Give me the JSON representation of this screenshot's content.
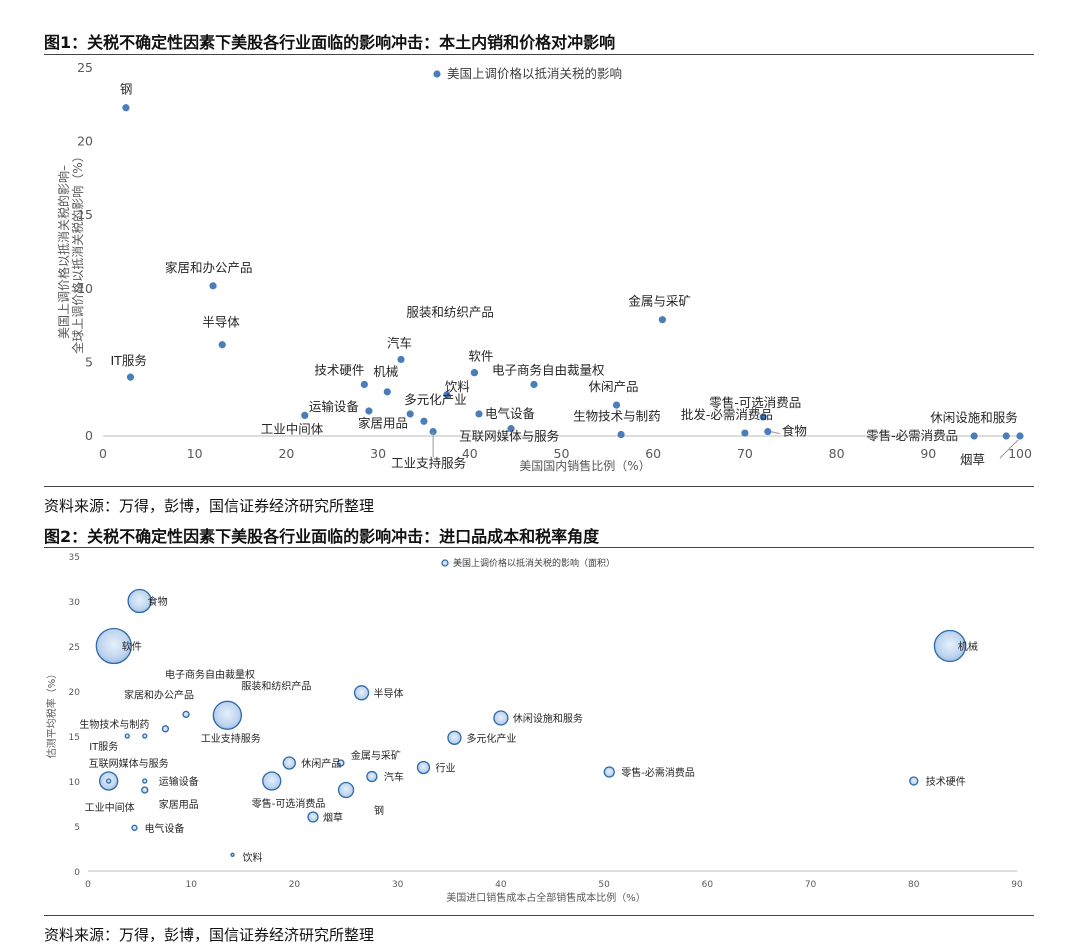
{
  "figures": [
    {
      "title": "图1：关税不确定性因素下美股各行业面临的影响冲击：本土内销和价格对冲影响",
      "source": "资料来源：万得，彭博，国信证券经济研究所整理",
      "chart_data": {
        "type": "scatter",
        "xlabel": "美国国内销售比例（%）",
        "ylabel": [
          "美国上调价格以抵消关税的影响–",
          "全球上调价格以抵消关税的影响（%）"
        ],
        "xlim": [
          0,
          100
        ],
        "ylim": [
          0,
          25
        ],
        "xticks": [
          "0",
          "10",
          "20",
          "30",
          "40",
          "50",
          "60",
          "70",
          "80",
          "90",
          "100"
        ],
        "yticks": [
          "0",
          "5",
          "10",
          "15",
          "20",
          "25"
        ],
        "legend": "美国上调价格以抵消关税的影响",
        "legend_position": "top-center",
        "color": "#4a7ebb",
        "points": [
          {
            "label": "钢",
            "x": 2.5,
            "y": 22.3
          },
          {
            "label": "家居和办公产品",
            "x": 12,
            "y": 10.2
          },
          {
            "label": "半导体",
            "x": 13,
            "y": 6.2
          },
          {
            "label": "IT服务",
            "x": 3,
            "y": 4.0
          },
          {
            "label": "服装和纺织产品",
            "x": 40.5,
            "y": 4.3
          },
          {
            "label": "汽车",
            "x": 32.5,
            "y": 5.2
          },
          {
            "label": "技术硬件",
            "x": 28.5,
            "y": 3.5
          },
          {
            "label": "机械",
            "x": 31,
            "y": 3.0
          },
          {
            "label": "软件",
            "x": 40.5,
            "y": 4.3
          },
          {
            "label": "饮料",
            "x": 37.5,
            "y": 2.8
          },
          {
            "label": "运输设备",
            "x": 29,
            "y": 1.7
          },
          {
            "label": "多元化产业",
            "x": 33.5,
            "y": 1.5
          },
          {
            "label": "工业中间体",
            "x": 22,
            "y": 1.4
          },
          {
            "label": "家居用品",
            "x": 35,
            "y": 1.0
          },
          {
            "label": "工业支持服务",
            "x": 36,
            "y": 0.3
          },
          {
            "label": "电子商务自由裁量权",
            "x": 47,
            "y": 3.5
          },
          {
            "label": "电气设备",
            "x": 41,
            "y": 1.5
          },
          {
            "label": "互联网媒体与服务",
            "x": 44.5,
            "y": 0.5
          },
          {
            "label": "金属与采矿",
            "x": 61,
            "y": 7.9
          },
          {
            "label": "休闲产品",
            "x": 56,
            "y": 2.1
          },
          {
            "label": "生物技术与制药",
            "x": 56.5,
            "y": 0.1
          },
          {
            "label": "零售-可选消费品",
            "x": 72,
            "y": 1.3
          },
          {
            "label": "批发-必需消费品",
            "x": 70,
            "y": 0.2
          },
          {
            "label": "食物",
            "x": 72.5,
            "y": 0.3
          },
          {
            "label": "休闲设施和服务",
            "x": 98.5,
            "y": 0.0
          },
          {
            "label": "零售-必需消费品",
            "x": 95,
            "y": 0.0
          },
          {
            "label": "烟草",
            "x": 100,
            "y": 0.0
          }
        ]
      }
    },
    {
      "title": "图2：关税不确定性因素下美股各行业面临的影响冲击：进口品成本和税率角度",
      "source": "资料来源：万得，彭博，国信证券经济研究所整理",
      "chart_data": {
        "type": "scatter",
        "xlabel": "美国进口销售成本占全部销售成本比例（%）",
        "ylabel": "估测平均税率（%）",
        "xlim": [
          0,
          90
        ],
        "ylim": [
          0,
          35
        ],
        "xticks": [
          "0",
          "10",
          "20",
          "30",
          "40",
          "50",
          "60",
          "70",
          "80",
          "90"
        ],
        "yticks": [
          "0",
          "5",
          "10",
          "15",
          "20",
          "25",
          "30",
          "35"
        ],
        "legend": "美国上调价格以抵消关税的影响（面积）",
        "legend_position": "top-center",
        "color": "#4a7ebb",
        "points": [
          {
            "label": "食物",
            "x": 5,
            "y": 30,
            "size": 11.5
          },
          {
            "label": "软件",
            "x": 2.5,
            "y": 25,
            "size": 17.5
          },
          {
            "label": "机械",
            "x": 83.5,
            "y": 25,
            "size": 15.5
          },
          {
            "label": "电子商务自由裁量权",
            "x": 12.5,
            "y": 17,
            "size": 3.5
          },
          {
            "label": "服装和纺织产品",
            "x": 13.5,
            "y": 17.3,
            "size": 14
          },
          {
            "label": "家居和办公产品",
            "x": 9.5,
            "y": 17.4,
            "size": 3
          },
          {
            "label": "半导体",
            "x": 26.5,
            "y": 19.8,
            "size": 7
          },
          {
            "label": "生物技术与制药",
            "x": 7.5,
            "y": 15.8,
            "size": 3
          },
          {
            "label": "IT服务",
            "x": 3.8,
            "y": 15,
            "size": 2
          },
          {
            "label": "工业支持服务",
            "x": 5.5,
            "y": 15,
            "size": 2
          },
          {
            "label": "休闲设施和服务",
            "x": 40,
            "y": 17,
            "size": 7
          },
          {
            "label": "多元化产业",
            "x": 35.5,
            "y": 14.8,
            "size": 6.5
          },
          {
            "label": "金属与采矿",
            "x": 24.5,
            "y": 12,
            "size": 3
          },
          {
            "label": "休闲产品",
            "x": 19.5,
            "y": 12,
            "size": 6
          },
          {
            "label": "行业",
            "x": 32.5,
            "y": 11.5,
            "size": 6
          },
          {
            "label": "汽车",
            "x": 27.5,
            "y": 10.5,
            "size": 5
          },
          {
            "label": "零售-必需消费品",
            "x": 50.5,
            "y": 11,
            "size": 5
          },
          {
            "label": "技术硬件",
            "x": 80,
            "y": 10,
            "size": 4
          },
          {
            "label": "互联网媒体与服务",
            "x": 2,
            "y": 10,
            "size": 9
          },
          {
            "label": "运输设备",
            "x": 5.5,
            "y": 10,
            "size": 2
          },
          {
            "label": "零售-可选消费品",
            "x": 17.8,
            "y": 10,
            "size": 9
          },
          {
            "label": "工业中间体",
            "x": 2,
            "y": 10,
            "size": 2
          },
          {
            "label": "家居用品",
            "x": 5.5,
            "y": 9,
            "size": 3
          },
          {
            "label": "钢",
            "x": 25,
            "y": 9,
            "size": 7.5
          },
          {
            "label": "烟草",
            "x": 21.8,
            "y": 6,
            "size": 5
          },
          {
            "label": "电气设备",
            "x": 4.5,
            "y": 4.8,
            "size": 2.5
          },
          {
            "label": "饮料",
            "x": 14,
            "y": 1.8,
            "size": 1.5
          }
        ]
      }
    }
  ]
}
